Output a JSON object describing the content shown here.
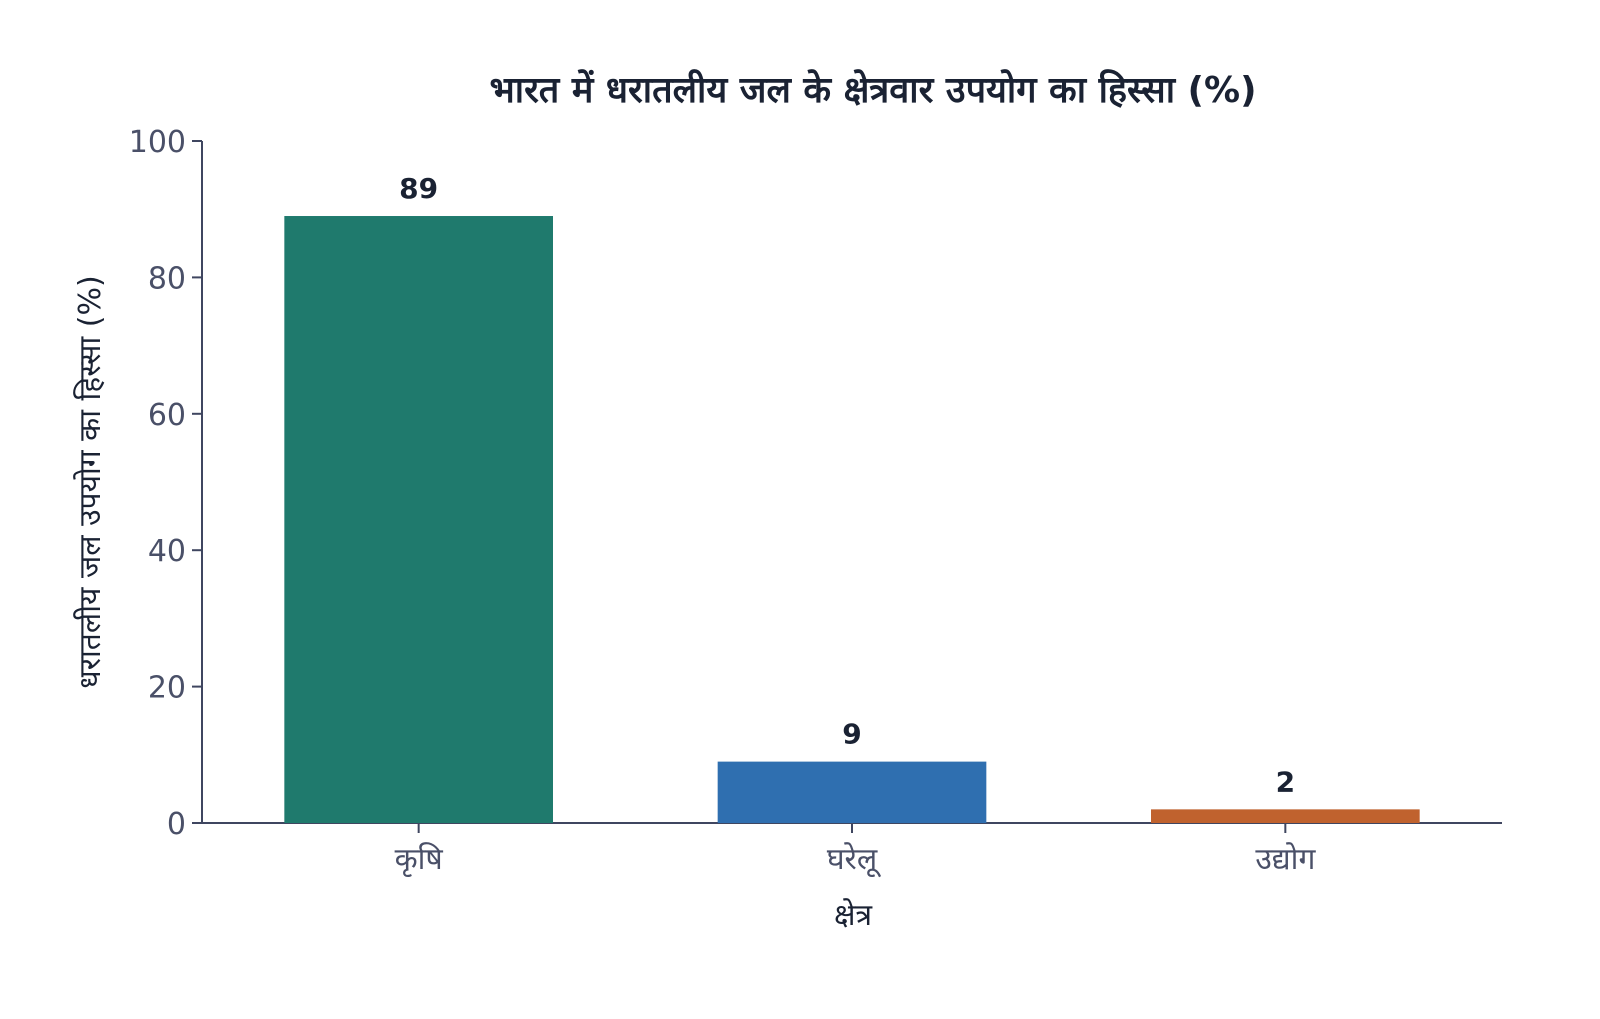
{
  "chart_data": {
    "type": "bar",
    "title": "भारत में धरातलीय जल के क्षेत्रवार उपयोग का हिस्सा (%)",
    "xlabel": "क्षेत्र",
    "ylabel": "धरातलीय जल उपयोग का हिस्सा (%)",
    "categories": [
      "कृषि",
      "घरेलू",
      "उद्योग"
    ],
    "values": [
      89,
      9,
      2
    ],
    "data_labels": [
      "89",
      "9",
      "2"
    ],
    "colors": [
      "#1f7a6d",
      "#2f6fb0",
      "#c0622e"
    ],
    "ylim": [
      0,
      100
    ],
    "yticks": [
      0,
      20,
      40,
      60,
      80,
      100
    ],
    "ytick_labels": [
      "0",
      "20",
      "40",
      "60",
      "80",
      "100"
    ],
    "grid": false,
    "legend": "none"
  }
}
